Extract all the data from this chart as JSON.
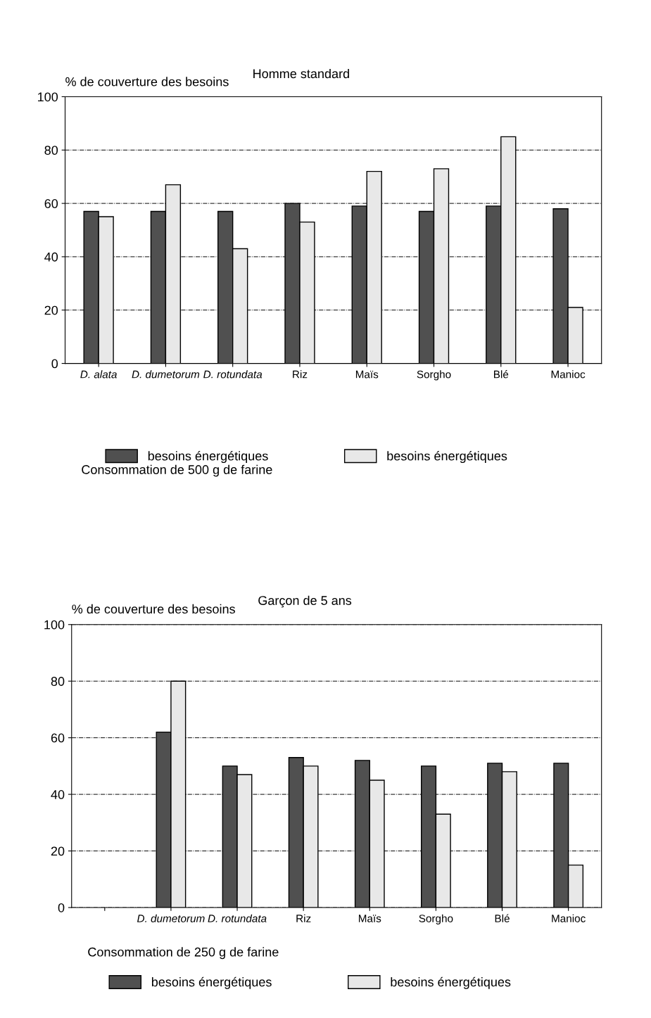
{
  "chart_data": [
    {
      "type": "bar",
      "title": "Homme standard",
      "ylabel": "% de couverture des besoins",
      "categories": [
        "D. alata",
        "D. dumetorum",
        "D. rotundata",
        "Riz",
        "Maïs",
        "Sorgho",
        "Blé",
        "Manioc"
      ],
      "series": [
        {
          "name": "besoins énergétiques",
          "color": "#505050",
          "values": [
            57,
            57,
            57,
            60,
            59,
            57,
            59,
            58
          ]
        },
        {
          "name": "besoins énergétiques",
          "color": "#e8e8e8",
          "values": [
            55,
            67,
            43,
            53,
            72,
            73,
            85,
            21
          ]
        }
      ],
      "ylim": [
        0,
        100
      ],
      "yticks": [
        0,
        20,
        40,
        60,
        80,
        100
      ],
      "grid": "y",
      "legend": "bottom",
      "annotations": [
        "Consommation de 500 g de farine"
      ]
    },
    {
      "type": "bar",
      "title": "Garçon de 5 ans",
      "ylabel": "% de couverture des besoins",
      "categories": [
        null,
        "D. dumetorum",
        "D. rotundata",
        "Riz",
        "Maïs",
        "Sorgho",
        "Blé",
        "Manioc"
      ],
      "series": [
        {
          "name": "besoins énergétiques",
          "color": "#505050",
          "values": [
            null,
            62,
            50,
            53,
            52,
            50,
            51,
            51
          ]
        },
        {
          "name": "besoins énergétiques",
          "color": "#e8e8e8",
          "values": [
            null,
            80,
            47,
            50,
            45,
            33,
            48,
            15
          ]
        }
      ],
      "ylim": [
        0,
        100
      ],
      "yticks": [
        0,
        20,
        40,
        60,
        80,
        100
      ],
      "grid": "y",
      "legend": "bottom",
      "annotations": [
        "Consommation de 250 g de farine"
      ]
    }
  ]
}
